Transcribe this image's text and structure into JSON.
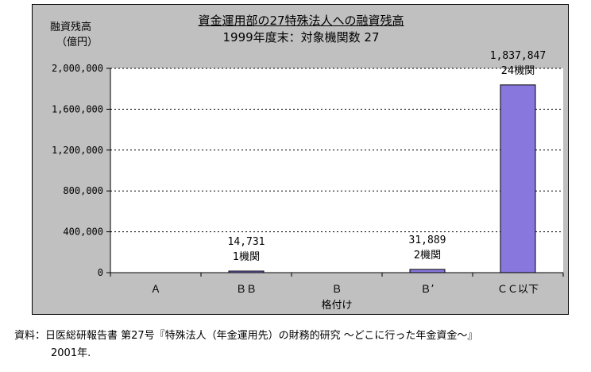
{
  "chart_data": {
    "type": "bar",
    "title": "資金運用部の27特殊法人への融資残高",
    "subtitle": "1999年度末：対象機関数 27",
    "ylabel_line1": "融資残高",
    "ylabel_line2": "（億円）",
    "xlabel": "格付け",
    "categories": [
      "Ａ",
      "ＢＢ",
      "Ｂ",
      "Ｂ’",
      "ＣＣ以下"
    ],
    "values": [
      0,
      14731,
      0,
      31889,
      1837847
    ],
    "value_labels": [
      "",
      "14,731",
      "",
      "31,889",
      "1,837,847"
    ],
    "count_labels": [
      "",
      "1機関",
      "",
      "2機関",
      "24機関"
    ],
    "ylim": [
      0,
      2000000
    ],
    "yticks": [
      0,
      400000,
      800000,
      1200000,
      1600000,
      2000000
    ],
    "ytick_labels": [
      "0",
      "400,000",
      "800,000",
      "1,200,000",
      "1,600,000",
      "2,000,000"
    ],
    "grid": true,
    "colors": {
      "bar": "#8877dd",
      "plot_bg": "#ffffff",
      "frame_bg": "#c0c0c0"
    }
  },
  "source_note": "資料：日医総研報告書 第27号『特殊法人（年金運用先）の財務的研究 ～どこに行った年金資金～』",
  "source_year": "2001年."
}
